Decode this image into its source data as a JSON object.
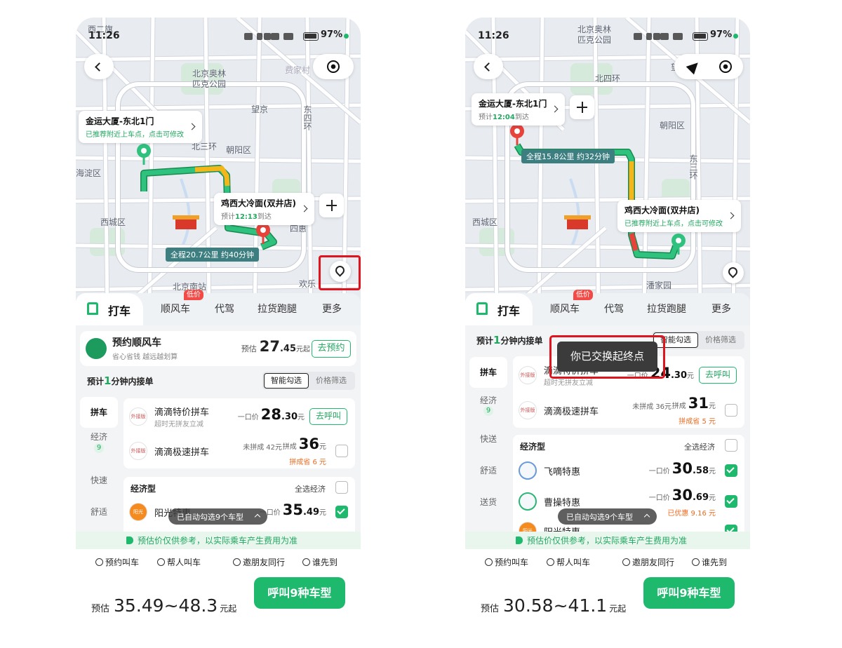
{
  "screens": [
    {
      "status": {
        "time": "11:26",
        "battery": "97%"
      },
      "map_labels": [
        "西二旗",
        "北京奥林匹克公园",
        "望京",
        "朝阳区",
        "海淀区",
        "西城区",
        "北京南站",
        "欢乐",
        "费家村",
        "四惠",
        "北三环",
        "东四环"
      ],
      "origin": {
        "name": "金运大厦-东北1门",
        "note": "已推荐附近上车点，点击可修改"
      },
      "destination": {
        "name": "鸡西大冷面(双井店)",
        "eta": {
          "prefix": "预计",
          "time": "12:13",
          "suffix": "到达"
        }
      },
      "route_summary": "全程20.7公里  约40分钟",
      "tabs": [
        "打车",
        "顺风车",
        "代驾",
        "拉货跑腿",
        "更多"
      ],
      "tab_badge": "低价",
      "promo": {
        "title": "预约顺风车",
        "sub": "省心省钱 越远越划算",
        "price_prefix": "预估",
        "price_int": "27",
        "price_dec": ".45",
        "price_unit": "元起",
        "button": "去预约"
      },
      "eta_line": {
        "prefix": "预计",
        "num": "1",
        "suffix": "分钟内接单"
      },
      "filters": [
        "智能勾选",
        "价格筛选"
      ],
      "sidebar": [
        {
          "label": "拼车"
        },
        {
          "label": "经济",
          "count": "9"
        },
        {
          "label": "快速"
        },
        {
          "label": "舒适"
        }
      ],
      "carpool": [
        {
          "logo": "外接版",
          "name": "滴滴特价拼车",
          "sub": "超时无拼友立减",
          "price_label": "一口价",
          "price_int": "28",
          "price_dec": ".30",
          "unit": "元",
          "button": "去呼叫"
        },
        {
          "logo": "外接版",
          "name": "滴滴极速拼车",
          "unpooled_label": "未拼成",
          "unpooled_price": "42元",
          "price_label": "拼成",
          "price_int": "36",
          "unit": "元",
          "saving": "拼成省 6 元"
        }
      ],
      "group": {
        "title": "经济型",
        "select_all": "全选经济"
      },
      "economy": [
        {
          "logo": "阳光",
          "name": "阳光特惠",
          "price_label": "一口价",
          "price_int": "35",
          "price_dec": ".49",
          "unit": "元",
          "checked": true
        }
      ],
      "auto_toast": "已自动勾选9个车型",
      "notice": "预估价仅供参考，以实际乘车产生费用为准",
      "actions": [
        "预约叫车",
        "帮人叫车",
        "邀朋友同行",
        "谁先到"
      ],
      "total": {
        "prefix": "预估",
        "range": "35.49~48.3",
        "unit": "元起"
      },
      "call_button": "呼叫9种车型"
    },
    {
      "status": {
        "time": "11:26",
        "battery": "97%"
      },
      "map_labels": [
        "北京奥林匹克公园",
        "北四环",
        "朝阳区",
        "西城区",
        "潘家园",
        "望京",
        "东三环"
      ],
      "origin": {
        "name": "金运大厦-东北1门",
        "eta": {
          "prefix": "预计",
          "time": "12:04",
          "suffix": "到达"
        }
      },
      "destination": {
        "name": "鸡西大冷面(双井店)",
        "note": "已推荐附近上车点，点击可修改"
      },
      "route_summary": "全程15.8公里  约32分钟",
      "tabs": [
        "打车",
        "顺风车",
        "代驾",
        "拉货跑腿",
        "更多"
      ],
      "tab_badge": "低价",
      "eta_line": {
        "prefix": "预计",
        "num": "1",
        "suffix": "分钟内接单"
      },
      "filters": [
        "智能勾选",
        "价格筛选"
      ],
      "sidebar": [
        {
          "label": "拼车"
        },
        {
          "label": "经济",
          "count": "9"
        },
        {
          "label": "快送"
        },
        {
          "label": "舒适"
        },
        {
          "label": "送货"
        }
      ],
      "carpool": [
        {
          "logo": "外接版",
          "name": "滴滴特价拼车",
          "sub": "超时无拼友立减",
          "price_label": "一口价",
          "price_int": "24",
          "price_dec": ".30",
          "unit": "元",
          "button": "去呼叫"
        },
        {
          "logo": "外接版",
          "name": "滴滴极速拼车",
          "unpooled_label": "未拼成",
          "unpooled_price": "36元",
          "price_label": "拼成",
          "price_int": "31",
          "unit": "元",
          "saving": "拼成省 5 元"
        }
      ],
      "group": {
        "title": "经济型",
        "select_all": "全选经济"
      },
      "economy": [
        {
          "name": "飞嘀特惠",
          "price_label": "一口价",
          "price_int": "30",
          "price_dec": ".58",
          "unit": "元",
          "checked": true
        },
        {
          "name": "曹操特惠",
          "price_label": "一口价",
          "price_int": "30",
          "price_dec": ".69",
          "unit": "元",
          "saving": "已优惠 9.16 元",
          "checked": true
        },
        {
          "logo": "阳光",
          "name": "阳光特惠",
          "checked": true
        }
      ],
      "auto_toast": "已自动勾选9个车型",
      "swap_toast": "你已交换起终点",
      "notice": "预估价仅供参考，以实际乘车产生费用为准",
      "actions": [
        "预约叫车",
        "帮人叫车",
        "邀朋友同行",
        "谁先到"
      ],
      "total": {
        "prefix": "预估",
        "range": "30.58~41.1",
        "unit": "元起"
      },
      "call_button": "呼叫9种车型"
    }
  ]
}
